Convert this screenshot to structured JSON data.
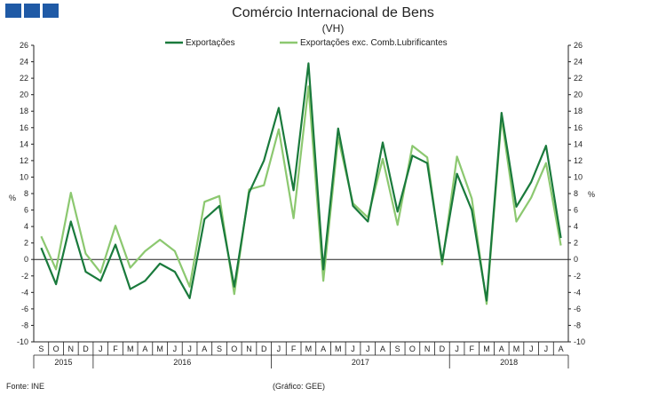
{
  "header": {
    "title": "Comércio Internacional de Bens",
    "subtitle": "(VH)"
  },
  "footer": {
    "source": "Fonte: INE",
    "credit": "(Gráfico: GEE)"
  },
  "chart_data": {
    "type": "line",
    "title": "Comércio Internacional de Bens",
    "subtitle": "(VH)",
    "ylabel_left": "%",
    "ylabel_right": "%",
    "ylim": [
      -10,
      26
    ],
    "yticks": [
      -10,
      -8,
      -6,
      -4,
      -2,
      0,
      2,
      4,
      6,
      8,
      10,
      12,
      14,
      16,
      18,
      20,
      22,
      24,
      26
    ],
    "grid": false,
    "legend_position": "top",
    "months": [
      "S",
      "O",
      "N",
      "D",
      "J",
      "F",
      "M",
      "A",
      "M",
      "J",
      "J",
      "A",
      "S",
      "O",
      "N",
      "D",
      "J",
      "F",
      "M",
      "A",
      "M",
      "J",
      "J",
      "A",
      "S",
      "O",
      "N",
      "D",
      "J",
      "F",
      "M",
      "A",
      "M",
      "J",
      "J",
      "A"
    ],
    "years": [
      {
        "label": "2015",
        "start": 0,
        "end": 3
      },
      {
        "label": "2016",
        "start": 4,
        "end": 15
      },
      {
        "label": "2017",
        "start": 16,
        "end": 27
      },
      {
        "label": "2018",
        "start": 28,
        "end": 35
      }
    ],
    "series": [
      {
        "name": "Exportações",
        "color": "#1a7a3c",
        "values": [
          1.4,
          -3.0,
          4.6,
          -1.5,
          -2.6,
          1.8,
          -3.6,
          -2.6,
          -0.5,
          -1.5,
          -4.7,
          4.9,
          6.5,
          -3.3,
          8.1,
          12.0,
          18.4,
          8.4,
          23.8,
          -1.2,
          15.9,
          6.5,
          4.6,
          14.2,
          5.8,
          12.6,
          11.7,
          -0.2,
          10.4,
          6.0,
          -5.0,
          17.8,
          6.4,
          9.4,
          13.8,
          2.6
        ]
      },
      {
        "name": "Exportações exc. Comb.Lubrificantes",
        "color": "#8cc870",
        "values": [
          2.8,
          -1.2,
          8.1,
          0.7,
          -1.6,
          4.1,
          -1.0,
          1.0,
          2.4,
          1.0,
          -3.3,
          7.0,
          7.7,
          -4.2,
          8.5,
          9.0,
          15.8,
          5.0,
          21.0,
          -2.6,
          14.8,
          6.8,
          5.1,
          12.2,
          4.2,
          13.8,
          12.4,
          -0.6,
          12.5,
          7.4,
          -5.4,
          17.2,
          4.6,
          7.5,
          11.7,
          1.7
        ]
      }
    ]
  }
}
